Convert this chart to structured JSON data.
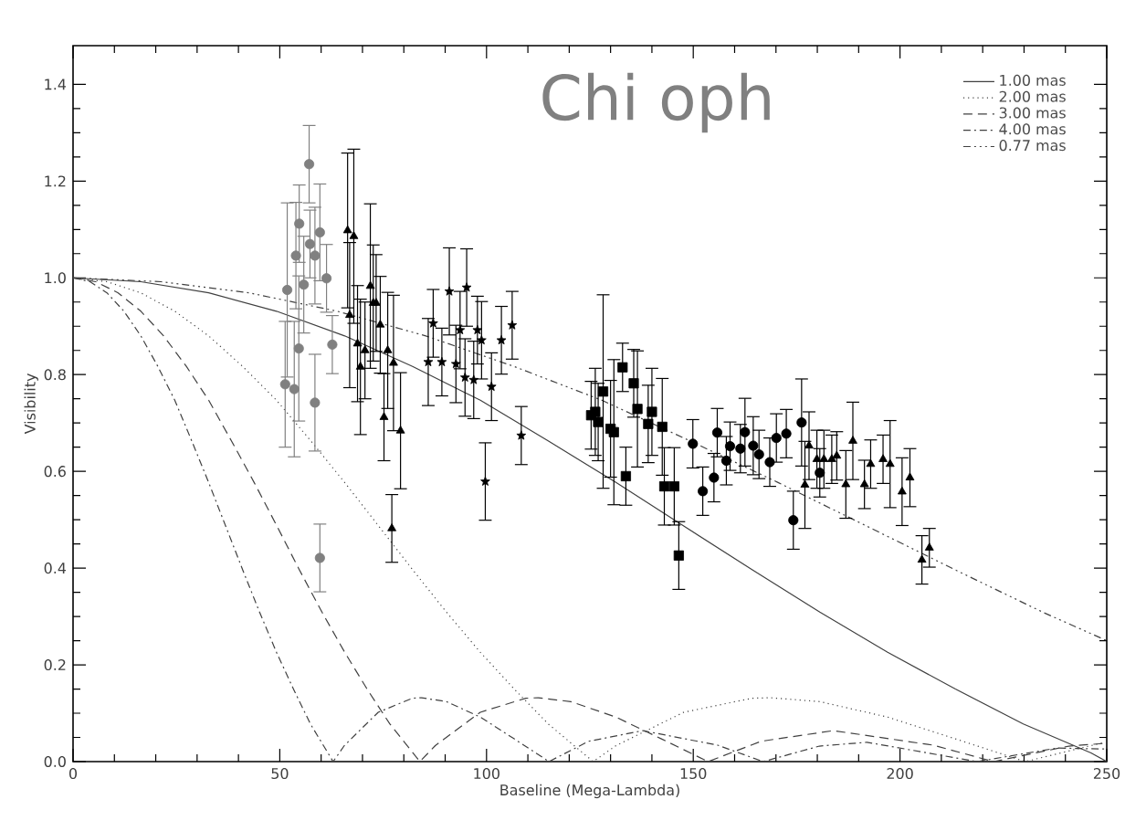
{
  "chart_data": {
    "type": "scatter",
    "title": "Chi oph",
    "xlabel": "Baseline (Mega-Lambda)",
    "ylabel": "Visibility",
    "xlim": [
      0,
      250
    ],
    "ylim": [
      0,
      1.48
    ],
    "xticks": [
      0,
      50,
      100,
      150,
      200,
      250
    ],
    "yticks": [
      {
        "value": 0,
        "label": "0.0"
      },
      {
        "value": 0.2,
        "label": "0.2"
      },
      {
        "value": 0.4,
        "label": "0.4"
      },
      {
        "value": 0.6,
        "label": "0.6"
      },
      {
        "value": 0.8,
        "label": "0.8"
      },
      {
        "value": 1.0,
        "label": "1.0"
      },
      {
        "value": 1.2,
        "label": "1.2"
      },
      {
        "value": 1.4,
        "label": "1.4"
      }
    ],
    "legend": "top right",
    "marker": "none",
    "series": [
      {
        "name": "1.00 mas",
        "type": "line",
        "line_style": "solid",
        "color": "#404040",
        "x": [
          0,
          16.4,
          32.8,
          49.2,
          65.7,
          82.1,
          98.5,
          114.9,
          131.3,
          147.7,
          164.2,
          180.6,
          197.0,
          213.4,
          229.8,
          246.2,
          250
        ],
        "values": [
          1,
          0.992,
          0.969,
          0.931,
          0.88,
          0.817,
          0.747,
          0.663,
          0.577,
          0.487,
          0.397,
          0.309,
          0.226,
          0.15,
          0.078,
          0.018,
          0
        ]
      },
      {
        "name": "2.00 mas",
        "type": "line",
        "line_style": "dotted",
        "color": "#404040",
        "x": [
          0,
          8.2,
          16.4,
          24.6,
          32.8,
          41.0,
          49.2,
          57.5,
          65.7,
          73.9,
          82.1,
          90.3,
          98.5,
          106.7,
          114.9,
          125.8,
          131.3,
          147.7,
          164.2,
          168.7,
          180.6,
          197.0,
          213.4,
          230.3,
          249.5
        ],
        "values": [
          1,
          0.992,
          0.969,
          0.931,
          0.88,
          0.817,
          0.747,
          0.663,
          0.577,
          0.487,
          0.397,
          0.309,
          0.226,
          0.15,
          0.078,
          0,
          0.033,
          0.102,
          0.131,
          0.132,
          0.124,
          0.092,
          0.047,
          0,
          0.04
        ]
      },
      {
        "name": "3.00 mas",
        "type": "line",
        "line_style": "dashed",
        "color": "#404040",
        "x": [
          0,
          5.5,
          10.9,
          16.4,
          21.9,
          27.4,
          32.8,
          38.3,
          43.8,
          49.3,
          54.7,
          60.2,
          65.7,
          71.1,
          76.6,
          83.9,
          87.6,
          98.5,
          109.5,
          112.5,
          120.4,
          131.3,
          142.3,
          153.6,
          166.4,
          183.9,
          208.0,
          222.6,
          240.8,
          250
        ],
        "values": [
          1,
          0.992,
          0.969,
          0.931,
          0.88,
          0.817,
          0.747,
          0.663,
          0.577,
          0.487,
          0.397,
          0.309,
          0.226,
          0.15,
          0.078,
          0,
          0.033,
          0.102,
          0.131,
          0.132,
          0.124,
          0.092,
          0.047,
          0,
          0.042,
          0.064,
          0.034,
          0,
          0.032,
          0.038
        ]
      },
      {
        "name": "4.00 mas",
        "type": "line",
        "line_style": "dashdot",
        "color": "#404040",
        "x": [
          0,
          4.1,
          8.2,
          12.3,
          16.4,
          20.5,
          24.6,
          28.7,
          32.8,
          36.9,
          41.0,
          45.1,
          49.2,
          53.3,
          57.4,
          62.9,
          65.6,
          73.8,
          82.1,
          84.3,
          90.3,
          98.5,
          106.7,
          115.1,
          124.7,
          137.8,
          155.9,
          166.9,
          180.5,
          192.0,
          218.6,
          237.9,
          250
        ],
        "values": [
          1,
          0.992,
          0.969,
          0.931,
          0.88,
          0.817,
          0.747,
          0.663,
          0.577,
          0.487,
          0.397,
          0.309,
          0.226,
          0.15,
          0.078,
          0,
          0.033,
          0.102,
          0.131,
          0.132,
          0.124,
          0.092,
          0.047,
          0,
          0.042,
          0.064,
          0.034,
          0,
          0.032,
          0.04,
          0,
          0.028,
          0.026
        ]
      },
      {
        "name": "0.77 mas",
        "type": "line",
        "line_style": "dashdotdot",
        "color": "#404040",
        "x": [
          0,
          21.3,
          42.6,
          63.9,
          85.3,
          106.6,
          127.9,
          149.2,
          170.5,
          191.9,
          213.2,
          234.5,
          250
        ],
        "values": [
          1,
          0.992,
          0.969,
          0.931,
          0.88,
          0.817,
          0.747,
          0.663,
          0.577,
          0.487,
          0.397,
          0.309,
          0.25
        ]
      },
      {
        "marker": "circle",
        "color": "#808080",
        "x": [
          51.3,
          51.8,
          53.5,
          53.9,
          54.6,
          54.7,
          55.8,
          57.1,
          57.3,
          58.5,
          58.5,
          59.7,
          59.7,
          61.3,
          62.7
        ],
        "values": [
          0.78,
          0.975,
          0.77,
          1.046,
          0.854,
          1.112,
          0.986,
          1.235,
          1.07,
          1.046,
          0.742,
          1.094,
          0.421,
          0.999,
          0.862
        ],
        "errors": [
          0.13,
          0.18,
          0.14,
          0.11,
          0.15,
          0.08,
          0.1,
          0.08,
          0.07,
          0.1,
          0.1,
          0.1,
          0.07,
          0.07,
          0.06
        ]
      },
      {
        "marker": "triangle",
        "color": "#000000",
        "x": [
          66.4,
          67.9,
          66.9,
          68.8,
          69.5,
          70.6,
          71.9,
          72.6,
          74.3,
          73.3,
          75.2,
          76.1,
          77.5,
          77.1,
          79.2
        ],
        "values": [
          1.098,
          1.086,
          0.923,
          0.864,
          0.816,
          0.85,
          0.983,
          0.948,
          0.903,
          0.948,
          0.712,
          0.85,
          0.824,
          0.482,
          0.684
        ],
        "errors": [
          0.16,
          0.18,
          0.15,
          0.12,
          0.14,
          0.1,
          0.17,
          0.12,
          0.1,
          0.1,
          0.09,
          0.12,
          0.14,
          0.07,
          0.12
        ]
      },
      {
        "marker": "star",
        "color": "#000000",
        "x": [
          85.9,
          87.1,
          89.2,
          91.0,
          92.6,
          93.6,
          94.8,
          95.2,
          96.9,
          97.8,
          98.8,
          99.7,
          101.2,
          103.6,
          106.2,
          108.4
        ],
        "values": [
          0.826,
          0.906,
          0.826,
          0.972,
          0.822,
          0.892,
          0.794,
          0.98,
          0.789,
          0.892,
          0.871,
          0.579,
          0.775,
          0.871,
          0.902,
          0.674
        ],
        "errors": [
          0.09,
          0.07,
          0.07,
          0.09,
          0.08,
          0.08,
          0.08,
          0.08,
          0.08,
          0.07,
          0.08,
          0.08,
          0.07,
          0.07,
          0.07,
          0.06
        ]
      },
      {
        "marker": "square",
        "color": "#000000",
        "x": [
          125.3,
          126.3,
          127.0,
          128.2,
          130.0,
          130.8,
          132.9,
          133.7,
          135.6,
          136.5,
          139.1,
          140.0,
          142.5,
          143.0,
          145.4,
          146.5
        ],
        "values": [
          0.716,
          0.723,
          0.702,
          0.765,
          0.688,
          0.681,
          0.815,
          0.59,
          0.782,
          0.729,
          0.698,
          0.723,
          0.692,
          0.569,
          0.569,
          0.426
        ],
        "errors": [
          0.07,
          0.09,
          0.08,
          0.2,
          0.1,
          0.15,
          0.05,
          0.06,
          0.07,
          0.12,
          0.08,
          0.09,
          0.1,
          0.08,
          0.08,
          0.07
        ]
      },
      {
        "marker": "circle",
        "color": "#000000",
        "x": [
          149.9,
          152.3,
          155.8,
          155.0,
          158.0,
          158.9,
          161.4,
          162.5,
          164.5,
          165.9,
          168.5,
          170.1,
          172.5,
          174.2,
          176.2,
          180.6
        ],
        "values": [
          0.657,
          0.559,
          0.68,
          0.587,
          0.622,
          0.652,
          0.647,
          0.681,
          0.653,
          0.635,
          0.619,
          0.669,
          0.678,
          0.499,
          0.701,
          0.597
        ],
        "errors": [
          0.05,
          0.05,
          0.05,
          0.05,
          0.05,
          0.05,
          0.05,
          0.07,
          0.06,
          0.05,
          0.05,
          0.05,
          0.05,
          0.06,
          0.09,
          0.05
        ]
      },
      {
        "marker": "triangle",
        "color": "#000000",
        "x": [
          177.0,
          178.0,
          179.9,
          181.6,
          183.5,
          184.7,
          186.9,
          188.6,
          191.4,
          192.9,
          195.9,
          197.6,
          200.5,
          202.4,
          205.3,
          207.1
        ],
        "values": [
          0.572,
          0.653,
          0.625,
          0.625,
          0.625,
          0.632,
          0.573,
          0.663,
          0.573,
          0.615,
          0.625,
          0.615,
          0.558,
          0.587,
          0.417,
          0.442
        ],
        "errors": [
          0.09,
          0.07,
          0.06,
          0.06,
          0.05,
          0.05,
          0.07,
          0.08,
          0.05,
          0.05,
          0.05,
          0.09,
          0.07,
          0.06,
          0.05,
          0.04
        ]
      }
    ]
  }
}
